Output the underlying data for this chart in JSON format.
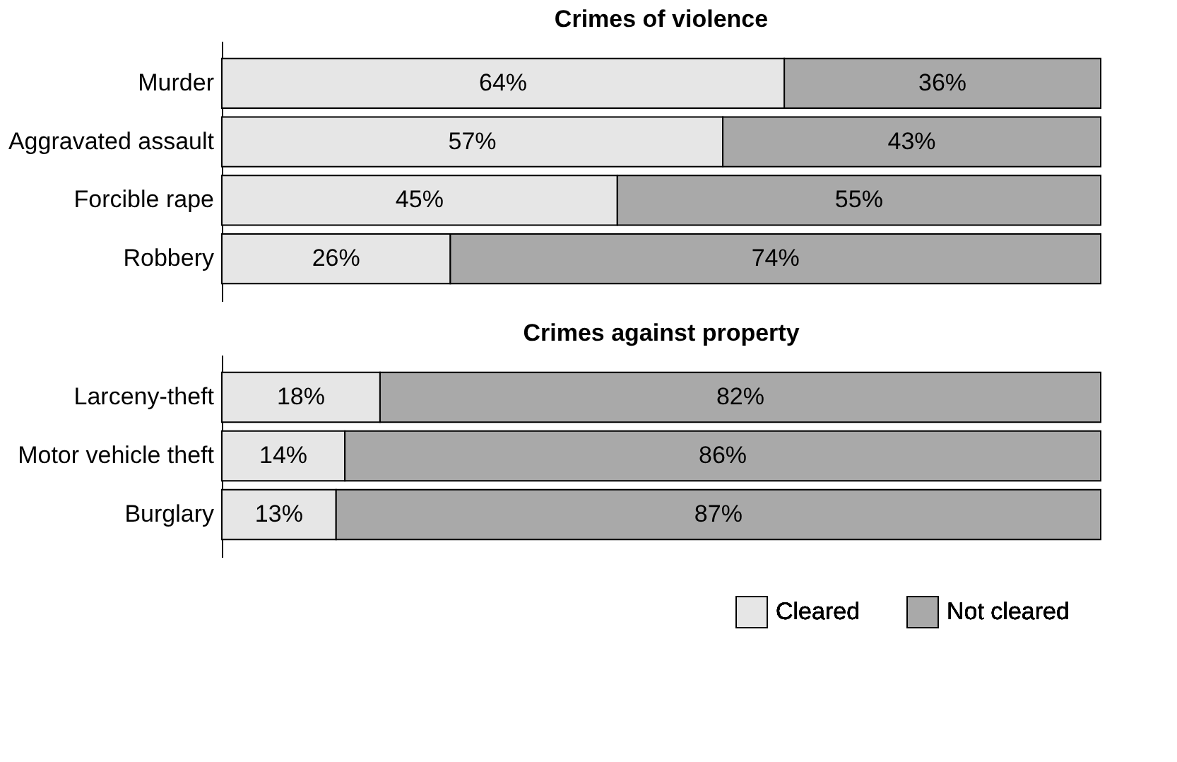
{
  "chart_data": [
    {
      "type": "bar",
      "orientation": "horizontal",
      "stacked": true,
      "title": "Crimes of violence",
      "categories": [
        "Murder",
        "Aggravated assault",
        "Forcible rape",
        "Robbery"
      ],
      "xlim": [
        0,
        100
      ],
      "tick_labels": "y",
      "legend": false,
      "series": [
        {
          "color": "#e6e6e6",
          "values": [
            64,
            57,
            45,
            26
          ],
          "value_labels": [
            "64%",
            "57%",
            "45%",
            "26%"
          ]
        },
        {
          "color": "#a9a9a9",
          "values": [
            36,
            43,
            55,
            74
          ],
          "value_labels": [
            "36%",
            "43%",
            "55%",
            "74%"
          ]
        }
      ]
    },
    {
      "type": "bar",
      "orientation": "horizontal",
      "stacked": true,
      "title": "Crimes against property",
      "categories": [
        "Larceny-theft",
        "Motor vehicle theft",
        "Burglary"
      ],
      "xlim": [
        0,
        100
      ],
      "tick_labels": "y",
      "legend": "bottom right",
      "series": [
        {
          "name": "Cleared",
          "color": "#e6e6e6",
          "values": [
            18,
            14,
            13
          ],
          "value_labels": [
            "18%",
            "14%",
            "13%"
          ]
        },
        {
          "name": "Not cleared",
          "color": "#a9a9a9",
          "values": [
            82,
            86,
            87
          ],
          "value_labels": [
            "82%",
            "86%",
            "87%"
          ]
        }
      ]
    }
  ]
}
